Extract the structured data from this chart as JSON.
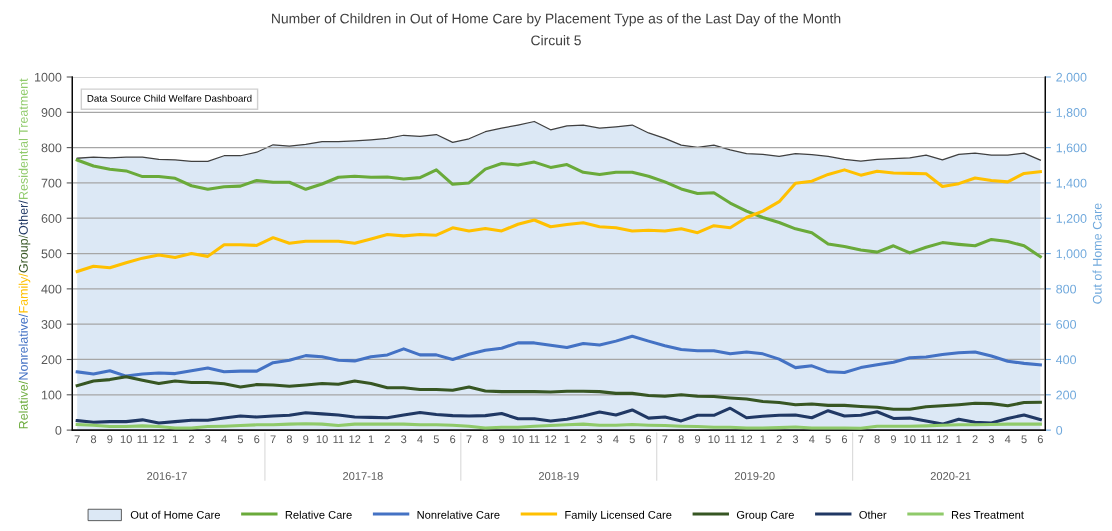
{
  "chart_data": {
    "type": "line",
    "title": "Number of Children in Out of Home Care by Placement Type as of the Last Day of the Month",
    "subtitle": "Circuit 5",
    "ylabel": "Relative/Nonrelative/Family/Group/Other/Residential Treatment",
    "y2label": "Out of Home Care",
    "categories": [
      "7",
      "8",
      "9",
      "10",
      "11",
      "12",
      "1",
      "2",
      "3",
      "4",
      "5",
      "6",
      "7",
      "8",
      "9",
      "10",
      "11",
      "12",
      "1",
      "2",
      "3",
      "4",
      "5",
      "6",
      "7",
      "8",
      "9",
      "10",
      "11",
      "12",
      "1",
      "2",
      "3",
      "4",
      "5",
      "6",
      "7",
      "8",
      "9",
      "10",
      "11",
      "12",
      "1",
      "2",
      "3",
      "4",
      "5",
      "6",
      "7",
      "8",
      "9",
      "10",
      "11",
      "12",
      "1",
      "2",
      "3",
      "4",
      "5",
      "6"
    ],
    "annotations": [
      "Data Source Child Welfare Dashboard",
      "2016-17",
      "2017-18",
      "2018-19",
      "2019-20",
      "2020-21"
    ],
    "ylim": [
      0,
      1000
    ],
    "yticks": [
      0,
      100,
      200,
      300,
      400,
      500,
      600,
      700,
      800,
      900,
      1000
    ],
    "y2lim": [
      0,
      2000
    ],
    "y2ticks": [
      0,
      200,
      400,
      600,
      800,
      {
        "value": 1000,
        "label": "1,000"
      },
      {
        "value": 1200,
        "label": "1,200"
      },
      {
        "value": 1400,
        "label": "1,400"
      },
      {
        "value": 1600,
        "label": "1,600"
      },
      {
        "value": 1800,
        "label": "1,800"
      },
      {
        "value": 2000,
        "label": "2,000"
      }
    ],
    "grid": "y",
    "legend": "bottom",
    "series": [
      {
        "name": "Out of Home Care",
        "type": "area",
        "axis": "y2",
        "color": "#dce8f5",
        "values": [
          1540,
          1546,
          1542,
          1546,
          1546,
          1534,
          1530,
          1522,
          1522,
          1554,
          1554,
          1574,
          1616,
          1608,
          1618,
          1634,
          1634,
          1638,
          1644,
          1652,
          1670,
          1664,
          1674,
          1630,
          1650,
          1690,
          1710,
          1728,
          1748,
          1701,
          1723,
          1728,
          1710,
          1718,
          1728,
          1683,
          1652,
          1614,
          1602,
          1614,
          1587,
          1566,
          1562,
          1551,
          1566,
          1560,
          1551,
          1533,
          1524,
          1533,
          1537,
          1542,
          1557,
          1531,
          1562,
          1569,
          1558,
          1558,
          1569,
          1529
        ]
      },
      {
        "name": "Relative Care",
        "color": "#6aaa3a",
        "values": [
          765,
          748,
          739,
          734,
          718,
          718,
          713,
          692,
          682,
          689,
          691,
          707,
          702,
          702,
          682,
          697,
          716,
          719,
          716,
          717,
          711,
          715,
          737,
          696,
          700,
          739,
          755,
          751,
          759,
          744,
          752,
          730,
          724,
          730,
          730,
          719,
          703,
          683,
          670,
          672,
          643,
          620,
          602,
          588,
          570,
          559,
          527,
          520,
          510,
          504,
          522,
          502,
          518,
          531,
          526,
          522,
          540,
          534,
          522,
          491
        ]
      },
      {
        "name": "Nonrelative Care",
        "color": "#4472c4",
        "values": [
          165,
          159,
          168,
          153,
          159,
          162,
          160,
          168,
          176,
          165,
          167,
          167,
          191,
          198,
          211,
          208,
          198,
          196,
          208,
          213,
          230,
          213,
          213,
          200,
          215,
          226,
          232,
          247,
          247,
          240,
          234,
          245,
          241,
          252,
          266,
          252,
          239,
          228,
          225,
          225,
          216,
          221,
          216,
          201,
          177,
          182,
          165,
          163,
          177,
          185,
          192,
          205,
          207,
          214,
          219,
          221,
          210,
          195,
          189,
          185
        ]
      },
      {
        "name": "Family Licensed Care",
        "color": "#ffc000",
        "values": [
          449,
          464,
          460,
          474,
          487,
          496,
          489,
          500,
          492,
          525,
          525,
          523,
          545,
          529,
          535,
          535,
          535,
          529,
          541,
          554,
          550,
          554,
          552,
          573,
          564,
          571,
          564,
          583,
          595,
          576,
          582,
          587,
          576,
          573,
          564,
          566,
          564,
          570,
          559,
          579,
          573,
          602,
          620,
          647,
          699,
          705,
          724,
          737,
          722,
          733,
          728,
          727,
          726,
          690,
          698,
          714,
          707,
          703,
          727,
          732
        ]
      },
      {
        "name": "Group Care",
        "color": "#375623",
        "values": [
          126,
          139,
          143,
          151,
          141,
          132,
          139,
          135,
          135,
          131,
          122,
          129,
          128,
          124,
          128,
          132,
          130,
          139,
          132,
          120,
          120,
          115,
          115,
          113,
          122,
          111,
          109,
          109,
          109,
          108,
          110,
          110,
          109,
          104,
          104,
          98,
          96,
          100,
          96,
          95,
          91,
          88,
          81,
          78,
          72,
          74,
          70,
          70,
          67,
          65,
          59,
          59,
          66,
          69,
          72,
          76,
          75,
          69,
          78,
          79
        ]
      },
      {
        "name": "Other",
        "color": "#203864",
        "values": [
          27,
          22,
          24,
          24,
          29,
          20,
          24,
          28,
          28,
          34,
          40,
          37,
          40,
          42,
          49,
          46,
          43,
          37,
          36,
          35,
          43,
          50,
          44,
          41,
          40,
          41,
          47,
          32,
          32,
          26,
          31,
          40,
          51,
          43,
          57,
          34,
          37,
          26,
          42,
          42,
          62,
          35,
          39,
          42,
          43,
          35,
          55,
          40,
          42,
          52,
          33,
          34,
          26,
          17,
          31,
          22,
          20,
          33,
          43,
          30
        ]
      },
      {
        "name": "Res Treatment",
        "color": "#8fca6a",
        "values": [
          16,
          14,
          10,
          10,
          12,
          10,
          6,
          6,
          10,
          11,
          13,
          15,
          15,
          17,
          18,
          17,
          13,
          17,
          17,
          17,
          17,
          15,
          15,
          14,
          11,
          6,
          8,
          8,
          11,
          13,
          15,
          17,
          14,
          14,
          16,
          14,
          13,
          11,
          10,
          8,
          8,
          6,
          6,
          7,
          9,
          6,
          6,
          6,
          5,
          11,
          11,
          11,
          12,
          14,
          15,
          15,
          16,
          17,
          17,
          17
        ]
      }
    ]
  }
}
